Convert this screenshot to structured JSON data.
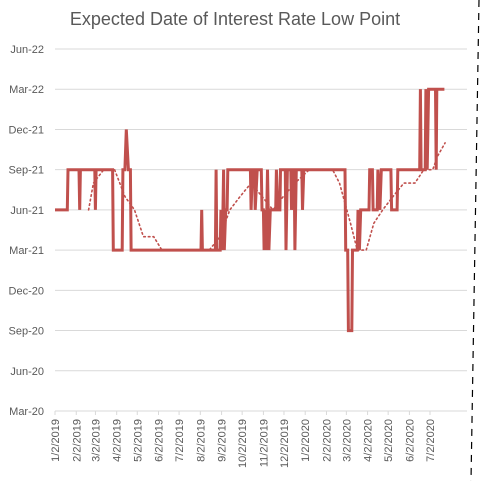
{
  "chart_data": {
    "type": "line",
    "title": "Expected Date of Interest Rate Low Point",
    "xlabel": "",
    "ylabel": "",
    "x_tick_labels": [
      "1/2/2019",
      "2/2/2019",
      "3/2/2019",
      "4/2/2019",
      "5/2/2019",
      "6/2/2019",
      "7/2/2019",
      "8/2/2019",
      "9/2/2019",
      "10/2/2019",
      "11/2/2019",
      "12/2/2019",
      "1/2/2020",
      "2/2/2020",
      "3/2/2020",
      "4/2/2020",
      "5/2/2020",
      "6/2/2020",
      "7/2/2020"
    ],
    "y_tick_labels": [
      "Mar-20",
      "Jun-20",
      "Sep-20",
      "Dec-20",
      "Mar-21",
      "Jun-21",
      "Sep-21",
      "Dec-21",
      "Mar-22",
      "Jun-22"
    ],
    "xlim": [
      "2019-01-02",
      "2020-08-25"
    ],
    "ylim": [
      "2020-03",
      "2022-06"
    ],
    "grid": true,
    "legend": "none",
    "colors": {
      "series": "#c0504d",
      "grid": "#d9d9d9",
      "axis_text": "#595959"
    },
    "series": [
      {
        "style": "solid",
        "points": [
          [
            "2019-01-02",
            "2021-06"
          ],
          [
            "2019-01-20",
            "2021-06"
          ],
          [
            "2019-01-21",
            "2021-09"
          ],
          [
            "2019-02-06",
            "2021-09"
          ],
          [
            "2019-02-07",
            "2021-06"
          ],
          [
            "2019-02-08",
            "2021-09"
          ],
          [
            "2019-03-01",
            "2021-09"
          ],
          [
            "2019-03-02",
            "2021-06"
          ],
          [
            "2019-03-03",
            "2021-09"
          ],
          [
            "2019-03-27",
            "2021-09"
          ],
          [
            "2019-03-28",
            "2021-03"
          ],
          [
            "2019-04-10",
            "2021-03"
          ],
          [
            "2019-04-11",
            "2021-09"
          ],
          [
            "2019-04-14",
            "2021-09"
          ],
          [
            "2019-04-16",
            "2021-12"
          ],
          [
            "2019-04-19",
            "2021-09"
          ],
          [
            "2019-04-22",
            "2021-09"
          ],
          [
            "2019-04-23",
            "2021-03"
          ],
          [
            "2019-08-03",
            "2021-03"
          ],
          [
            "2019-08-04",
            "2021-06"
          ],
          [
            "2019-08-05",
            "2021-03"
          ],
          [
            "2019-08-24",
            "2021-03"
          ],
          [
            "2019-08-25",
            "2021-09"
          ],
          [
            "2019-08-26",
            "2021-03"
          ],
          [
            "2019-08-31",
            "2021-03"
          ],
          [
            "2019-09-01",
            "2021-06"
          ],
          [
            "2019-09-03",
            "2021-03"
          ],
          [
            "2019-09-05",
            "2021-09"
          ],
          [
            "2019-09-06",
            "2021-03"
          ],
          [
            "2019-09-08",
            "2021-06"
          ],
          [
            "2019-09-10",
            "2021-06"
          ],
          [
            "2019-09-11",
            "2021-09"
          ],
          [
            "2019-10-14",
            "2021-09"
          ],
          [
            "2019-10-15",
            "2021-06"
          ],
          [
            "2019-10-17",
            "2021-09"
          ],
          [
            "2019-10-20",
            "2021-09"
          ],
          [
            "2019-10-21",
            "2021-06"
          ],
          [
            "2019-10-24",
            "2021-09"
          ],
          [
            "2019-10-30",
            "2021-09"
          ],
          [
            "2019-10-31",
            "2021-06"
          ],
          [
            "2019-11-02",
            "2021-06"
          ],
          [
            "2019-11-03",
            "2021-03"
          ],
          [
            "2019-11-04",
            "2021-06"
          ],
          [
            "2019-11-06",
            "2021-03"
          ],
          [
            "2019-11-08",
            "2021-09"
          ],
          [
            "2019-11-10",
            "2021-03"
          ],
          [
            "2019-11-12",
            "2021-06"
          ],
          [
            "2019-11-20",
            "2021-06"
          ],
          [
            "2019-11-21",
            "2021-09"
          ],
          [
            "2019-11-23",
            "2021-06"
          ],
          [
            "2019-11-26",
            "2021-06"
          ],
          [
            "2019-11-27",
            "2021-09"
          ],
          [
            "2019-12-04",
            "2021-09"
          ],
          [
            "2019-12-05",
            "2021-03"
          ],
          [
            "2019-12-07",
            "2021-09"
          ],
          [
            "2019-12-12",
            "2021-09"
          ],
          [
            "2019-12-13",
            "2021-06"
          ],
          [
            "2019-12-15",
            "2021-09"
          ],
          [
            "2019-12-17",
            "2021-09"
          ],
          [
            "2019-12-18",
            "2021-03"
          ],
          [
            "2019-12-20",
            "2021-09"
          ],
          [
            "2019-12-28",
            "2021-09"
          ],
          [
            "2019-12-29",
            "2021-06"
          ],
          [
            "2019-12-31",
            "2021-09"
          ],
          [
            "2020-02-29",
            "2021-09"
          ],
          [
            "2020-03-01",
            "2021-03"
          ],
          [
            "2020-03-04",
            "2021-03"
          ],
          [
            "2020-03-05",
            "2020-09"
          ],
          [
            "2020-03-10",
            "2020-09"
          ],
          [
            "2020-03-11",
            "2021-03"
          ],
          [
            "2020-03-18",
            "2021-03"
          ],
          [
            "2020-03-19",
            "2021-06"
          ],
          [
            "2020-03-21",
            "2021-03"
          ],
          [
            "2020-03-23",
            "2021-06"
          ],
          [
            "2020-04-04",
            "2021-06"
          ],
          [
            "2020-04-05",
            "2021-09"
          ],
          [
            "2020-04-09",
            "2021-09"
          ],
          [
            "2020-04-10",
            "2021-06"
          ],
          [
            "2020-04-16",
            "2021-06"
          ],
          [
            "2020-04-17",
            "2021-09"
          ],
          [
            "2020-04-20",
            "2021-06"
          ],
          [
            "2020-04-22",
            "2021-09"
          ],
          [
            "2020-05-06",
            "2021-09"
          ],
          [
            "2020-05-07",
            "2021-06"
          ],
          [
            "2020-05-15",
            "2021-06"
          ],
          [
            "2020-05-16",
            "2021-09"
          ],
          [
            "2020-06-17",
            "2021-09"
          ],
          [
            "2020-06-18",
            "2022-03"
          ],
          [
            "2020-06-19",
            "2021-09"
          ],
          [
            "2020-06-25",
            "2021-09"
          ],
          [
            "2020-06-26",
            "2022-03"
          ],
          [
            "2020-06-28",
            "2021-09"
          ],
          [
            "2020-06-30",
            "2022-03"
          ],
          [
            "2020-07-10",
            "2022-03"
          ],
          [
            "2020-07-11",
            "2021-09"
          ],
          [
            "2020-07-12",
            "2022-03"
          ],
          [
            "2020-07-23",
            "2022-03"
          ]
        ]
      },
      {
        "style": "dotted",
        "points": [
          [
            "2019-02-20",
            "2021-06"
          ],
          [
            "2019-02-27",
            "2021-08"
          ],
          [
            "2019-03-14",
            "2021-09"
          ],
          [
            "2019-03-30",
            "2021-09"
          ],
          [
            "2019-04-14",
            "2021-07"
          ],
          [
            "2019-04-28",
            "2021-06"
          ],
          [
            "2019-05-11",
            "2021-04"
          ],
          [
            "2019-05-26",
            "2021-04"
          ],
          [
            "2019-06-07",
            "2021-03"
          ],
          [
            "2019-07-01",
            "2021-03"
          ],
          [
            "2019-08-05",
            "2021-03"
          ],
          [
            "2019-08-15",
            "2021-03"
          ],
          [
            "2019-08-31",
            "2021-04"
          ],
          [
            "2019-09-14",
            "2021-06"
          ],
          [
            "2019-09-29",
            "2021-07"
          ],
          [
            "2019-10-15",
            "2021-08"
          ],
          [
            "2019-10-31",
            "2021-07"
          ],
          [
            "2019-11-16",
            "2021-06"
          ],
          [
            "2019-12-01",
            "2021-07"
          ],
          [
            "2019-12-18",
            "2021-08"
          ],
          [
            "2020-01-08",
            "2021-09"
          ],
          [
            "2020-01-24",
            "2021-09"
          ],
          [
            "2020-02-11",
            "2021-09"
          ],
          [
            "2020-02-21",
            "2021-08"
          ],
          [
            "2020-03-08",
            "2021-05"
          ],
          [
            "2020-03-18",
            "2021-03"
          ],
          [
            "2020-03-31",
            "2021-03"
          ],
          [
            "2020-04-11",
            "2021-05"
          ],
          [
            "2020-04-24",
            "2021-06"
          ],
          [
            "2020-05-09",
            "2021-07"
          ],
          [
            "2020-05-25",
            "2021-08"
          ],
          [
            "2020-06-10",
            "2021-08"
          ],
          [
            "2020-06-23",
            "2021-09"
          ],
          [
            "2020-07-06",
            "2021-09"
          ],
          [
            "2020-07-13",
            "2021-10"
          ],
          [
            "2020-07-24",
            "2021-11"
          ]
        ]
      }
    ]
  }
}
